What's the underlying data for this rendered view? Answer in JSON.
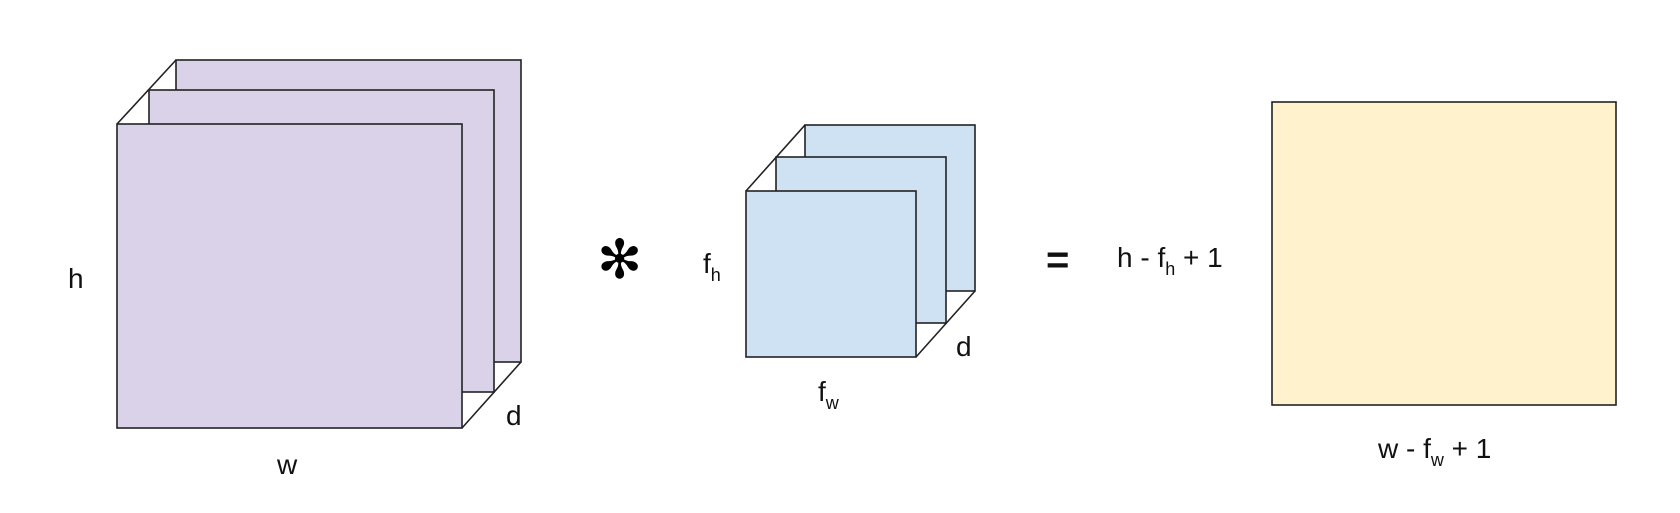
{
  "input_volume": {
    "height_label": "h",
    "width_label": "w",
    "depth_label": "d",
    "color": "#d9d2e9"
  },
  "operator_convolution": "✻",
  "filter_volume": {
    "height_label": {
      "base": "f",
      "sub": "h"
    },
    "width_label": {
      "base": "f",
      "sub": "w"
    },
    "depth_label": "d",
    "color": "#cfe2f3"
  },
  "operator_equals": "=",
  "output_map": {
    "height_label": {
      "pre": "h - ",
      "base": "f",
      "sub": "h",
      "post": " + 1"
    },
    "width_label": {
      "pre": "w - ",
      "base": "f",
      "sub": "w",
      "post": " + 1"
    },
    "color": "#fff2cc"
  },
  "stroke_color": "#222222"
}
